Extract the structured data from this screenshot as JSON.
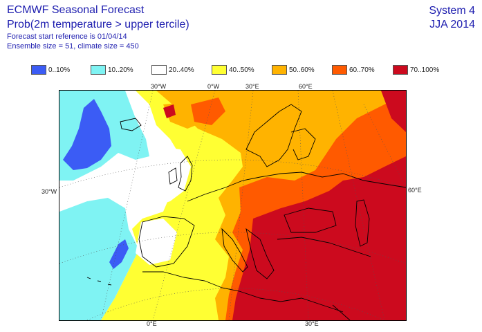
{
  "title": "ECMWF Seasonal Forecast",
  "subtitle": "Prob(2m temperature > upper tercile)",
  "start_ref": "Forecast start reference is 01/04/14",
  "ensemble": "Ensemble size = 51, climate size = 450",
  "system": "System 4",
  "season": "JJA 2014",
  "legend": [
    {
      "label": "0..10%",
      "color": "#3b5cf5"
    },
    {
      "label": "10..20%",
      "color": "#7ff3f3"
    },
    {
      "label": "20..40%",
      "color": "#ffffff"
    },
    {
      "label": "40..50%",
      "color": "#ffff33"
    },
    {
      "label": "50..60%",
      "color": "#ffb300"
    },
    {
      "label": "60..70%",
      "color": "#ff5a00"
    },
    {
      "label": "70..100%",
      "color": "#cc0a1e"
    }
  ],
  "axis": {
    "top": [
      "30°W",
      "0°W",
      "30°E",
      "60°E"
    ],
    "left": "30°W",
    "right": "60°E",
    "bottom": [
      "0°E",
      "30°E"
    ]
  }
}
